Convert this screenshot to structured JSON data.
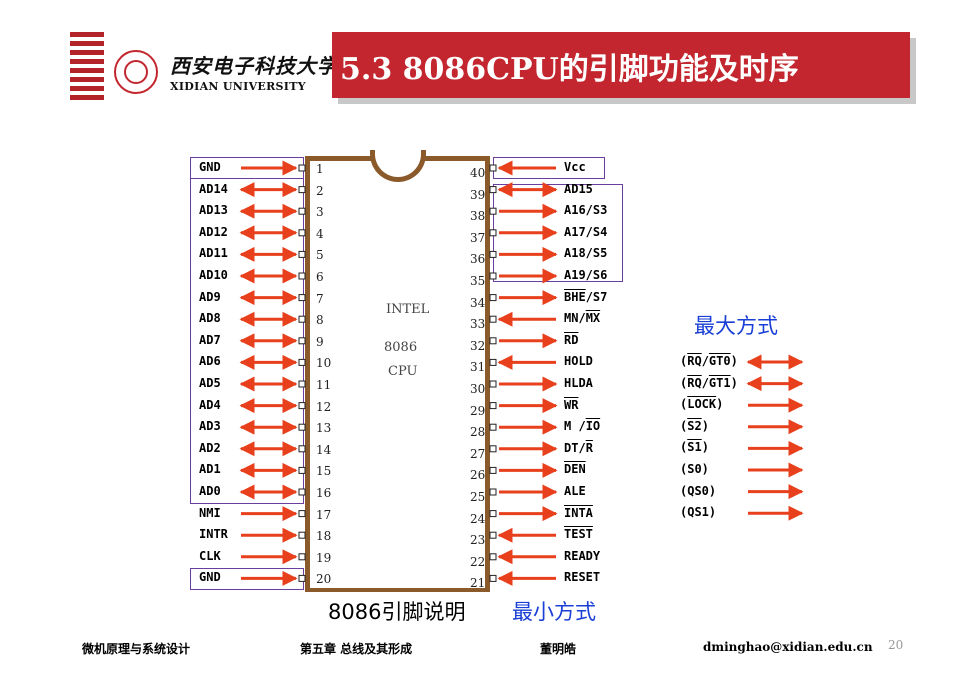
{
  "header": {
    "university_cn": "西安电子科技大学",
    "university_en": "XIDIAN UNIVERSITY",
    "title": "5.3  8086CPU的引脚功能及时序",
    "accent_color": "#c3262e"
  },
  "chip": {
    "maker": "INTEL",
    "model": "8086",
    "type": "CPU"
  },
  "left_pins": [
    {
      "num": "1",
      "name": "GND",
      "dir": "in"
    },
    {
      "num": "2",
      "name": "AD14",
      "dir": "bi"
    },
    {
      "num": "3",
      "name": "AD13",
      "dir": "bi"
    },
    {
      "num": "4",
      "name": "AD12",
      "dir": "bi"
    },
    {
      "num": "5",
      "name": "AD11",
      "dir": "bi"
    },
    {
      "num": "6",
      "name": "AD10",
      "dir": "bi"
    },
    {
      "num": "7",
      "name": "AD9",
      "dir": "bi"
    },
    {
      "num": "8",
      "name": "AD8",
      "dir": "bi"
    },
    {
      "num": "9",
      "name": "AD7",
      "dir": "bi"
    },
    {
      "num": "10",
      "name": "AD6",
      "dir": "bi"
    },
    {
      "num": "11",
      "name": "AD5",
      "dir": "bi"
    },
    {
      "num": "12",
      "name": "AD4",
      "dir": "bi"
    },
    {
      "num": "13",
      "name": "AD3",
      "dir": "bi"
    },
    {
      "num": "14",
      "name": "AD2",
      "dir": "bi"
    },
    {
      "num": "15",
      "name": "AD1",
      "dir": "bi"
    },
    {
      "num": "16",
      "name": "AD0",
      "dir": "bi"
    },
    {
      "num": "17",
      "name": "NMI",
      "dir": "in"
    },
    {
      "num": "18",
      "name": "INTR",
      "dir": "in"
    },
    {
      "num": "19",
      "name": "CLK",
      "dir": "in"
    },
    {
      "num": "20",
      "name": "GND",
      "dir": "in"
    }
  ],
  "right_pins": [
    {
      "num": "40",
      "name": "Vcc",
      "dir": "in"
    },
    {
      "num": "39",
      "name": "AD15",
      "dir": "bi"
    },
    {
      "num": "38",
      "name": "A16/S3",
      "dir": "out"
    },
    {
      "num": "37",
      "name": "A17/S4",
      "dir": "out"
    },
    {
      "num": "36",
      "name": "A18/S5",
      "dir": "out"
    },
    {
      "num": "35",
      "name": "A19/S6",
      "dir": "out"
    },
    {
      "num": "34",
      "name": "BHE/S7",
      "dir": "out"
    },
    {
      "num": "33",
      "name": "MN/MX",
      "dir": "in"
    },
    {
      "num": "32",
      "name": "RD",
      "dir": "out"
    },
    {
      "num": "31",
      "name": "HOLD",
      "dir": "in"
    },
    {
      "num": "30",
      "name": "HLDA",
      "dir": "out"
    },
    {
      "num": "29",
      "name": "WR",
      "dir": "out"
    },
    {
      "num": "28",
      "name": "M /IO",
      "dir": "out"
    },
    {
      "num": "27",
      "name": "DT/R",
      "dir": "out"
    },
    {
      "num": "26",
      "name": "DEN",
      "dir": "out"
    },
    {
      "num": "25",
      "name": "ALE",
      "dir": "out"
    },
    {
      "num": "24",
      "name": "INTA",
      "dir": "out"
    },
    {
      "num": "23",
      "name": "TEST",
      "dir": "in"
    },
    {
      "num": "22",
      "name": "READY",
      "dir": "in"
    },
    {
      "num": "21",
      "name": "RESET",
      "dir": "in"
    }
  ],
  "max_mode": {
    "label": "最大方式",
    "signals": [
      {
        "name": "(RQ/GT0)",
        "dir": "bi"
      },
      {
        "name": "(RQ/GT1)",
        "dir": "bi"
      },
      {
        "name": "(LOCK)",
        "dir": "out"
      },
      {
        "name": "(S2)",
        "dir": "out"
      },
      {
        "name": "(S1)",
        "dir": "out"
      },
      {
        "name": "(S0)",
        "dir": "out"
      },
      {
        "name": "(QS0)",
        "dir": "out"
      },
      {
        "name": "(QS1)",
        "dir": "out"
      }
    ]
  },
  "captions": {
    "pin_description": "8086引脚说明",
    "min_mode": "最小方式"
  },
  "footer": {
    "course": "微机原理与系统设计",
    "chapter": "第五章  总线及其形成",
    "author": "董明皓",
    "email": "dminghao@xidian.edu.cn",
    "page": "20"
  },
  "colors": {
    "arrow": "#e8401c",
    "box": "#6a3fa0",
    "chip_body": "#8b5a2b",
    "mode_label": "#1a3fd6"
  }
}
